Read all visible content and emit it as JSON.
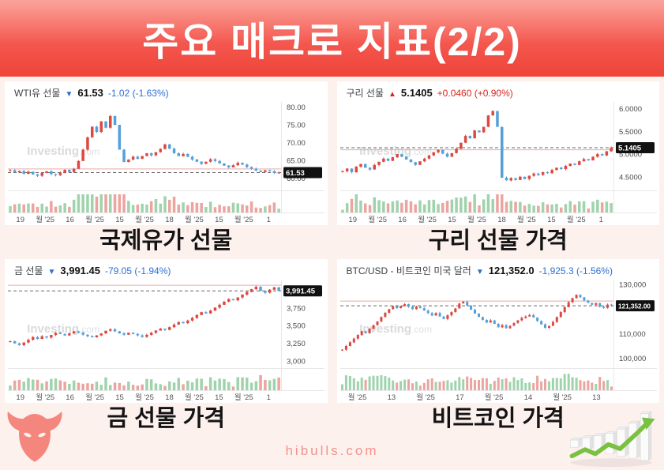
{
  "title": "주요 매크로 지표(2/2)",
  "footer": {
    "site": "hibulls.com"
  },
  "colors": {
    "candle_up": "#dd4840",
    "candle_down": "#55a0d9",
    "volume_up": "#9fd3ac",
    "volume_down": "#eba49e",
    "change_up": "#d9261c",
    "change_down": "#2d6fd2",
    "badge_bg": "#111111",
    "badge_text": "#ffffff",
    "tick_text": "#4a4a4a",
    "x_label_text": "#555555",
    "grid_line": "#e8e8e8",
    "last_price_line": "#666666",
    "prev_close_line": "#eba9a2",
    "watermark": "#9aa0a6",
    "accent_pink": "#f5867d",
    "arrow_green": "#7ac142"
  },
  "chart_data": [
    {
      "type": "candlestick",
      "name": "WTI유 선물",
      "direction": "down",
      "arrow": "▼",
      "price": "61.53",
      "change": "-1.02 (-1.63%)",
      "caption": "국제유가 선물",
      "badge": "61.53",
      "watermark_bold": "Investing",
      "watermark_light": ".com",
      "ylim": [
        56.5,
        81.5
      ],
      "last": 61.53,
      "prev_close": 62.55,
      "y_ticks": [
        {
          "v": 80,
          "label": "80.00"
        },
        {
          "v": 75,
          "label": "75.00"
        },
        {
          "v": 70,
          "label": "70.00"
        },
        {
          "v": 65,
          "label": "65.00"
        },
        {
          "v": 60,
          "label": "60.00"
        }
      ],
      "x_labels": [
        "19",
        "월 '25",
        "16",
        "월 '25",
        "15",
        "월 '25",
        "18",
        "월 '25",
        "15",
        "월 '25",
        "1"
      ],
      "prices": [
        62.2,
        61.6,
        62.0,
        61.2,
        61.8,
        61.0,
        60.6,
        61.4,
        61.9,
        61.1,
        60.8,
        61.5,
        62.3,
        61.7,
        62.6,
        64.8,
        68.0,
        71.5,
        74.5,
        73.0,
        76.0,
        74.2,
        77.5,
        75.0,
        68.0,
        64.5,
        65.2,
        66.0,
        65.4,
        66.2,
        67.0,
        66.4,
        67.3,
        68.2,
        69.5,
        68.3,
        67.0,
        66.2,
        66.8,
        66.0,
        65.2,
        64.6,
        64.0,
        64.6,
        65.3,
        64.8,
        64.1,
        63.5,
        63.0,
        63.6,
        64.3,
        63.8,
        63.1,
        62.6,
        62.1,
        61.7,
        62.2,
        61.9,
        61.4,
        61.53
      ]
    },
    {
      "type": "candlestick",
      "name": "구리 선물",
      "direction": "up",
      "arrow": "▲",
      "price": "5.1405",
      "change": "+0.0460 (+0.90%)",
      "caption": "구리 선물 가격",
      "badge": "5.1405",
      "watermark_bold": "Investing",
      "watermark_light": ".com",
      "ylim": [
        4.2,
        6.15
      ],
      "last": 5.1405,
      "prev_close": 5.0945,
      "y_ticks": [
        {
          "v": 6.0,
          "label": "6.0000"
        },
        {
          "v": 5.5,
          "label": "5.5000"
        },
        {
          "v": 5.0,
          "label": "5.0000"
        },
        {
          "v": 4.5,
          "label": "4.5000"
        }
      ],
      "x_labels": [
        "19",
        "월 '25",
        "16",
        "월 '25",
        "15",
        "월 '25",
        "18",
        "월 '25",
        "15",
        "월 '25",
        "1"
      ],
      "prices": [
        4.62,
        4.68,
        4.6,
        4.72,
        4.78,
        4.7,
        4.66,
        4.76,
        4.83,
        4.9,
        4.85,
        4.93,
        5.0,
        4.94,
        4.88,
        4.82,
        4.76,
        4.84,
        4.9,
        4.97,
        5.04,
        5.09,
        5.01,
        4.94,
        5.02,
        5.12,
        5.25,
        5.4,
        5.35,
        5.52,
        5.48,
        5.6,
        5.85,
        5.95,
        5.6,
        4.48,
        4.42,
        4.47,
        4.43,
        4.5,
        4.45,
        4.52,
        4.57,
        4.54,
        4.6,
        4.58,
        4.65,
        4.7,
        4.67,
        4.74,
        4.79,
        4.76,
        4.84,
        4.89,
        4.86,
        4.94,
        5.0,
        4.97,
        5.06,
        5.1405
      ]
    },
    {
      "type": "candlestick",
      "name": "금 선물",
      "direction": "down",
      "arrow": "▼",
      "price": "3,991.45",
      "change": "-79.05 (-1.94%)",
      "caption": "금 선물 가격",
      "badge": "3,991.45",
      "watermark_bold": "Investing",
      "watermark_light": ".com",
      "ylim": [
        2900,
        4150
      ],
      "last": 3991.45,
      "prev_close": 4070.5,
      "y_ticks": [
        {
          "v": 3750,
          "label": "3,750"
        },
        {
          "v": 3500,
          "label": "3,500"
        },
        {
          "v": 3250,
          "label": "3,250"
        },
        {
          "v": 3000,
          "label": "3,000"
        }
      ],
      "x_labels": [
        "19",
        "월 '25",
        "16",
        "월 '25",
        "15",
        "월 '25",
        "18",
        "월 '25",
        "15",
        "월 '25",
        "1"
      ],
      "prices": [
        3280,
        3250,
        3225,
        3262,
        3300,
        3338,
        3312,
        3350,
        3332,
        3368,
        3398,
        3380,
        3362,
        3390,
        3418,
        3400,
        3372,
        3352,
        3335,
        3362,
        3390,
        3428,
        3448,
        3420,
        3392,
        3372,
        3400,
        3382,
        3362,
        3342,
        3370,
        3400,
        3430,
        3458,
        3440,
        3478,
        3515,
        3550,
        3535,
        3572,
        3610,
        3650,
        3690,
        3672,
        3712,
        3755,
        3795,
        3838,
        3875,
        3858,
        3898,
        3938,
        3975,
        4015,
        4048,
        3992,
        3965,
        4008,
        4042,
        3991.45
      ]
    },
    {
      "type": "candlestick",
      "name": "BTC/USD - 비트코인 미국 달러",
      "direction": "down",
      "arrow": "▼",
      "price": "121,352.0",
      "change": "-1,925.3 (-1.56%)",
      "caption": "비트코인 가격",
      "badge": "121,352.00",
      "watermark_bold": "Investing",
      "watermark_light": ".com",
      "ylim": [
        96000,
        132000
      ],
      "last": 121352,
      "prev_close": 123277.3,
      "y_ticks": [
        {
          "v": 130000,
          "label": "130,000"
        },
        {
          "v": 110000,
          "label": "110,000"
        },
        {
          "v": 100000,
          "label": "100,000"
        }
      ],
      "x_labels": [
        "월 '25",
        "13",
        "월 '25",
        "17",
        "월 '25",
        "14",
        "월 '25",
        "13"
      ],
      "prices": [
        103500,
        105000,
        106500,
        108000,
        109500,
        111000,
        110200,
        112000,
        113500,
        115000,
        116800,
        118500,
        120000,
        121200,
        120400,
        121300,
        122000,
        121000,
        120000,
        121000,
        120400,
        119400,
        118400,
        117400,
        118400,
        117000,
        116000,
        117500,
        118800,
        120300,
        122300,
        123000,
        121500,
        119800,
        118200,
        116800,
        115600,
        114500,
        115400,
        114000,
        112600,
        113500,
        112200,
        113200,
        114400,
        115400,
        116400,
        117000,
        117600,
        116600,
        115200,
        113800,
        112400,
        113200,
        114800,
        116800,
        118800,
        120800,
        122800,
        124500,
        125800,
        124800,
        123500,
        122500,
        121800,
        122500,
        121000,
        120500,
        121800,
        121352
      ]
    }
  ]
}
